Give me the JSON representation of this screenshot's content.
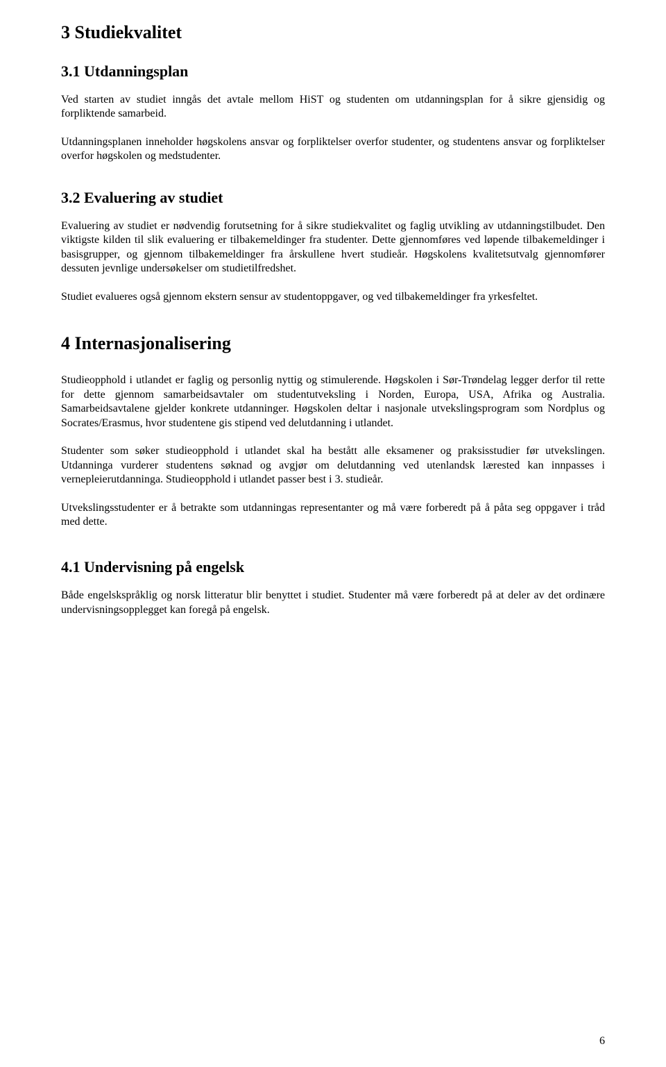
{
  "page_number": "6",
  "sections": {
    "s3": {
      "heading": "3   Studiekvalitet",
      "s31": {
        "heading": "3.1   Utdanningsplan",
        "p1": "Ved starten av studiet inngås det avtale mellom HiST og studenten om utdanningsplan for å sikre gjensidig og forpliktende samarbeid.",
        "p2": "Utdanningsplanen inneholder høgskolens ansvar og forpliktelser overfor studenter, og studentens ansvar og forpliktelser overfor høgskolen og medstudenter."
      },
      "s32": {
        "heading": "3.2   Evaluering av studiet",
        "p1": "Evaluering av studiet er nødvendig forutsetning for å sikre studiekvalitet og faglig utvikling av utdanningstilbudet. Den viktigste kilden til slik evaluering er tilbakemeldinger fra studenter. Dette gjennomføres ved løpende tilbakemeldinger i basisgrupper, og gjennom tilbakemeldinger fra årskullene hvert studieår. Høgskolens kvalitetsutvalg gjennomfører dessuten jevnlige undersøkelser om studietilfredshet.",
        "p2": "Studiet evalueres også gjennom ekstern sensur av studentoppgaver, og ved tilbakemeldinger fra yrkesfeltet."
      }
    },
    "s4": {
      "heading": "4   Internasjonalisering",
      "p1": "Studieopphold i utlandet er faglig og personlig nyttig og stimulerende. Høgskolen i Sør-Trøndelag legger derfor til rette for dette gjennom samarbeidsavtaler om studentutveksling i Norden, Europa, USA, Afrika og Australia. Samarbeidsavtalene gjelder konkrete utdanninger. Høgskolen deltar i nasjonale utvekslingsprogram som Nordplus og Socrates/Erasmus, hvor studentene gis stipend ved delutdanning i utlandet.",
      "p2": "Studenter som søker studieopphold i utlandet skal ha bestått alle eksamener og praksisstudier før utvekslingen. Utdanninga vurderer studentens søknad og avgjør om delutdanning ved utenlandsk lærested kan innpasses i vernepleierutdanninga. Studieopphold i utlandet passer best i 3. studieår.",
      "p3": "Utvekslingsstudenter er å betrakte som utdanningas representanter og må være forberedt på å påta seg oppgaver i tråd med dette.",
      "s41": {
        "heading": "4.1   Undervisning på engelsk",
        "p1": "Både engelskspråklig og norsk litteratur blir benyttet i studiet. Studenter må være forberedt på at deler av det ordinære undervisningsopplegget kan foregå på engelsk."
      }
    }
  }
}
